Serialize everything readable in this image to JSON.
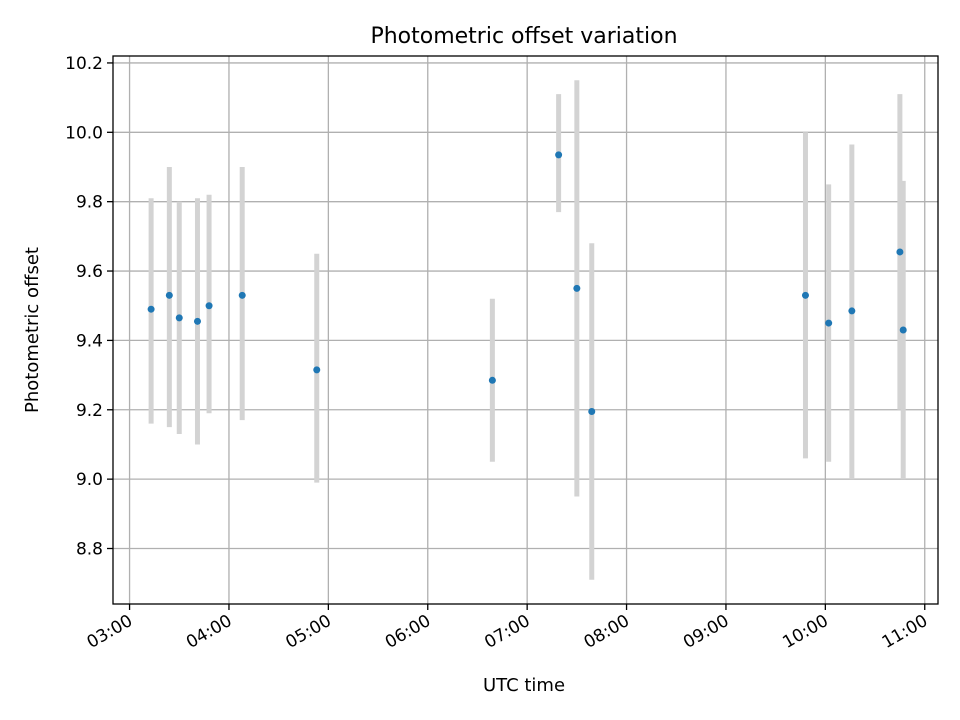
{
  "chart_data": {
    "type": "scatter",
    "title": "Photometric offset variation",
    "xlabel": "UTC time",
    "ylabel": "Photometric offset",
    "x_ticks": [
      "03:00",
      "04:00",
      "05:00",
      "06:00",
      "07:00",
      "08:00",
      "09:00",
      "10:00",
      "11:00"
    ],
    "y_ticks": [
      "8.8",
      "9.0",
      "9.2",
      "9.4",
      "9.6",
      "9.8",
      "10.0",
      "10.2"
    ],
    "xlim": [
      "02:50",
      "11:08"
    ],
    "ylim": [
      8.64,
      10.22
    ],
    "grid": true,
    "colors": {
      "point": "#1f77b4",
      "errorbar": "#d3d3d3",
      "grid": "#b0b0b0"
    },
    "points": [
      {
        "x": "03:13",
        "y": 9.49,
        "y_low": 9.16,
        "y_high": 9.81
      },
      {
        "x": "03:24",
        "y": 9.53,
        "y_low": 9.15,
        "y_high": 9.9
      },
      {
        "x": "03:30",
        "y": 9.465,
        "y_low": 9.13,
        "y_high": 9.8
      },
      {
        "x": "03:41",
        "y": 9.455,
        "y_low": 9.1,
        "y_high": 9.81
      },
      {
        "x": "03:48",
        "y": 9.5,
        "y_low": 9.19,
        "y_high": 9.82
      },
      {
        "x": "04:08",
        "y": 9.53,
        "y_low": 9.17,
        "y_high": 9.9
      },
      {
        "x": "04:53",
        "y": 9.315,
        "y_low": 8.99,
        "y_high": 9.65
      },
      {
        "x": "06:39",
        "y": 9.285,
        "y_low": 9.05,
        "y_high": 9.52
      },
      {
        "x": "07:19",
        "y": 9.935,
        "y_low": 9.77,
        "y_high": 10.11
      },
      {
        "x": "07:30",
        "y": 9.55,
        "y_low": 8.95,
        "y_high": 10.15
      },
      {
        "x": "07:39",
        "y": 9.195,
        "y_low": 8.71,
        "y_high": 9.68
      },
      {
        "x": "09:48",
        "y": 9.53,
        "y_low": 9.06,
        "y_high": 10.0
      },
      {
        "x": "10:02",
        "y": 9.45,
        "y_low": 9.05,
        "y_high": 9.85
      },
      {
        "x": "10:16",
        "y": 9.485,
        "y_low": 9.0,
        "y_high": 9.965
      },
      {
        "x": "10:45",
        "y": 9.655,
        "y_low": 9.2,
        "y_high": 10.11
      },
      {
        "x": "10:47",
        "y": 9.43,
        "y_low": 9.0,
        "y_high": 9.86
      }
    ]
  }
}
